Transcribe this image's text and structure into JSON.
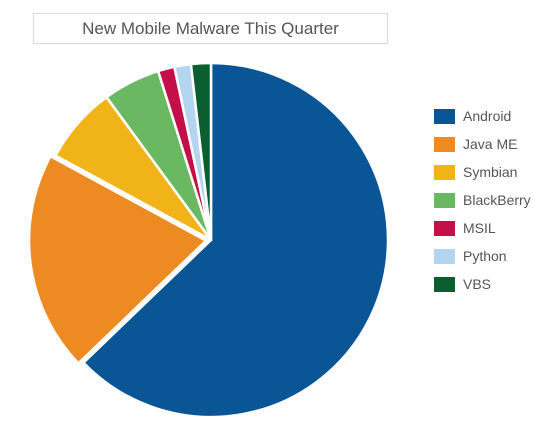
{
  "chart_data": {
    "type": "pie",
    "title": "New Mobile Malware This Quarter",
    "categories": [
      "Android",
      "Java ME",
      "Symbian",
      "BlackBerry",
      "MSIL",
      "Python",
      "VBS"
    ],
    "values": [
      62.5,
      20.0,
      7.0,
      5.2,
      1.5,
      1.5,
      1.8
    ],
    "unit": "percent (estimated)",
    "colors": [
      "#0a5595",
      "#ed8b22",
      "#f0b418",
      "#6bb863",
      "#c41048",
      "#b4d5f0",
      "#0b5e30"
    ],
    "legend": "right",
    "start_angle_deg": 0,
    "direction": "clockwise",
    "exploded": [
      "Java ME"
    ]
  }
}
